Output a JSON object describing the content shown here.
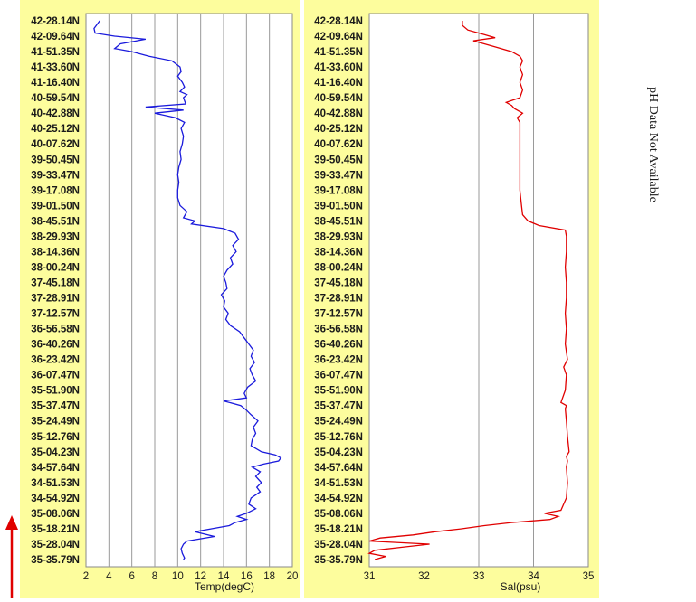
{
  "side_note": "pH Data Not Available",
  "chart_data": [
    {
      "type": "line",
      "xlabel": "Temp(degC)",
      "ylabel": "",
      "xlim": [
        2,
        20
      ],
      "x_ticks": [
        "2",
        "4",
        "6",
        "8",
        "10",
        "12",
        "14",
        "16",
        "18",
        "20"
      ],
      "y_tick_labels": [
        "42-28.14N",
        "42-09.64N",
        "41-51.35N",
        "41-33.60N",
        "41-16.40N",
        "40-59.54N",
        "40-42.88N",
        "40-25.12N",
        "40-07.62N",
        "39-50.45N",
        "39-33.47N",
        "39-17.08N",
        "39-01.50N",
        "38-45.51N",
        "38-29.93N",
        "38-14.36N",
        "38-00.24N",
        "37-45.18N",
        "37-28.91N",
        "37-12.57N",
        "36-56.58N",
        "36-40.26N",
        "36-23.42N",
        "36-07.47N",
        "35-51.90N",
        "35-37.47N",
        "35-24.49N",
        "35-12.76N",
        "35-04.23N",
        "34-57.64N",
        "34-51.53N",
        "34-54.92N",
        "35-08.06N",
        "35-18.21N",
        "35-28.04N",
        "35-35.79N"
      ],
      "grid": "vertical",
      "color": "#1a1adc",
      "series": [
        {
          "y": [
            0.0,
            0.2,
            0.5,
            0.8,
            1.0,
            1.2,
            1.5,
            1.8,
            2.0,
            2.3,
            2.6,
            3.0,
            3.3,
            3.6,
            4.0,
            4.3,
            4.6,
            4.8,
            5.0,
            5.2,
            5.4,
            5.6,
            5.8,
            6.0,
            6.3,
            6.6,
            7.0,
            7.5,
            8.0,
            8.5,
            9.0,
            9.5,
            10.0,
            10.5,
            11.0,
            11.5,
            12.0,
            12.4,
            12.8,
            13.0,
            13.2,
            13.5,
            13.8,
            14.2,
            14.6,
            15.0,
            15.4,
            15.8,
            16.2,
            16.6,
            17.0,
            17.4,
            17.8,
            18.2,
            18.6,
            19.0,
            19.4,
            19.8,
            20.2,
            20.6,
            21.0,
            21.4,
            21.8,
            22.2,
            22.6,
            23.0,
            23.4,
            23.8,
            24.2,
            24.5,
            24.7,
            25.0,
            25.3,
            25.6,
            26.0,
            26.4,
            26.8,
            27.2,
            27.6,
            28.0,
            28.2,
            28.4,
            28.6,
            28.8,
            29.0,
            29.3,
            29.6,
            30.0,
            30.3,
            30.6,
            31.0,
            31.4,
            31.7,
            32.0,
            32.2,
            32.4,
            32.6,
            32.8,
            33.0,
            33.2,
            33.5,
            33.8,
            34.0,
            34.3,
            34.6,
            34.9,
            35.0
          ],
          "x": [
            3.2,
            3.0,
            2.7,
            2.8,
            4.5,
            7.2,
            5.0,
            4.5,
            6.0,
            7.5,
            9.5,
            10.2,
            10.3,
            10.0,
            10.4,
            10.6,
            10.2,
            10.8,
            10.5,
            10.6,
            10.7,
            7.2,
            10.5,
            8.0,
            9.8,
            10.6,
            10.3,
            10.5,
            10.4,
            10.2,
            10.3,
            10.1,
            10.0,
            10.1,
            10.0,
            10.0,
            10.2,
            10.8,
            10.5,
            11.5,
            11.2,
            14.0,
            15.0,
            15.3,
            14.8,
            15.1,
            14.6,
            14.8,
            14.3,
            14.0,
            14.2,
            14.3,
            13.8,
            14.1,
            14.0,
            14.4,
            14.2,
            14.6,
            15.4,
            15.8,
            16.2,
            16.6,
            16.4,
            16.7,
            16.3,
            16.5,
            16.8,
            16.1,
            15.8,
            16.0,
            14.0,
            15.5,
            16.0,
            16.4,
            17.0,
            16.6,
            16.8,
            16.5,
            16.4,
            17.3,
            18.5,
            19.0,
            18.8,
            17.5,
            16.5,
            17.2,
            16.8,
            17.3,
            16.9,
            17.2,
            16.4,
            16.2,
            16.8,
            16.0,
            15.2,
            16.0,
            15.0,
            14.5,
            13.0,
            11.5,
            13.2,
            10.8,
            10.5,
            10.3,
            10.4,
            10.6,
            10.5
          ]
        }
      ]
    },
    {
      "type": "line",
      "xlabel": "Sal(psu)",
      "ylabel": "",
      "xlim": [
        31,
        35
      ],
      "x_ticks": [
        "31",
        "32",
        "33",
        "34",
        "35"
      ],
      "y_tick_labels": [
        "42-28.14N",
        "42-09.64N",
        "41-51.35N",
        "41-33.60N",
        "41-16.40N",
        "40-59.54N",
        "40-42.88N",
        "40-25.12N",
        "40-07.62N",
        "39-50.45N",
        "39-33.47N",
        "39-17.08N",
        "39-01.50N",
        "38-45.51N",
        "38-29.93N",
        "38-14.36N",
        "38-00.24N",
        "37-45.18N",
        "37-28.91N",
        "37-12.57N",
        "36-56.58N",
        "36-40.26N",
        "36-23.42N",
        "36-07.47N",
        "35-51.90N",
        "35-37.47N",
        "35-24.49N",
        "35-12.76N",
        "35-04.23N",
        "34-57.64N",
        "34-51.53N",
        "34-54.92N",
        "35-08.06N",
        "35-18.21N",
        "35-28.04N",
        "35-35.79N"
      ],
      "grid": "vertical",
      "color": "#e00000",
      "series": [
        {
          "y": [
            0.0,
            0.3,
            0.6,
            0.9,
            1.1,
            1.3,
            1.5,
            1.7,
            2.0,
            2.3,
            2.6,
            3.0,
            3.5,
            4.0,
            4.5,
            5.0,
            5.3,
            5.5,
            5.7,
            6.0,
            6.3,
            6.6,
            7.0,
            8.0,
            9.0,
            10.0,
            11.0,
            12.0,
            12.6,
            13.0,
            13.3,
            13.6,
            14.0,
            15.0,
            16.0,
            17.0,
            18.0,
            19.0,
            20.0,
            21.0,
            22.0,
            22.5,
            23.0,
            24.0,
            24.8,
            25.0,
            25.2,
            26.0,
            27.0,
            28.0,
            28.3,
            28.6,
            29.0,
            30.0,
            31.0,
            31.8,
            32.0,
            32.2,
            32.4,
            32.6,
            32.8,
            33.0,
            33.2,
            33.4,
            33.6,
            33.8,
            34.0,
            34.2,
            34.4,
            34.6,
            34.8,
            35.0
          ],
          "x": [
            32.7,
            32.7,
            32.8,
            33.1,
            33.3,
            32.9,
            33.1,
            33.3,
            33.6,
            33.75,
            33.8,
            33.75,
            33.8,
            33.75,
            33.8,
            33.75,
            33.5,
            33.6,
            33.65,
            33.8,
            33.7,
            33.75,
            33.75,
            33.75,
            33.75,
            33.75,
            33.75,
            33.78,
            33.8,
            33.9,
            34.1,
            34.58,
            34.6,
            34.6,
            34.58,
            34.6,
            34.6,
            34.58,
            34.6,
            34.58,
            34.62,
            34.55,
            34.6,
            34.58,
            34.5,
            34.6,
            34.58,
            34.6,
            34.62,
            34.65,
            34.6,
            34.62,
            34.6,
            34.62,
            34.6,
            34.5,
            34.2,
            34.45,
            34.3,
            33.6,
            33.1,
            32.7,
            32.2,
            31.8,
            31.2,
            31.0,
            32.1,
            31.6,
            31.1,
            31.0,
            31.3,
            31.1
          ]
        }
      ]
    }
  ]
}
